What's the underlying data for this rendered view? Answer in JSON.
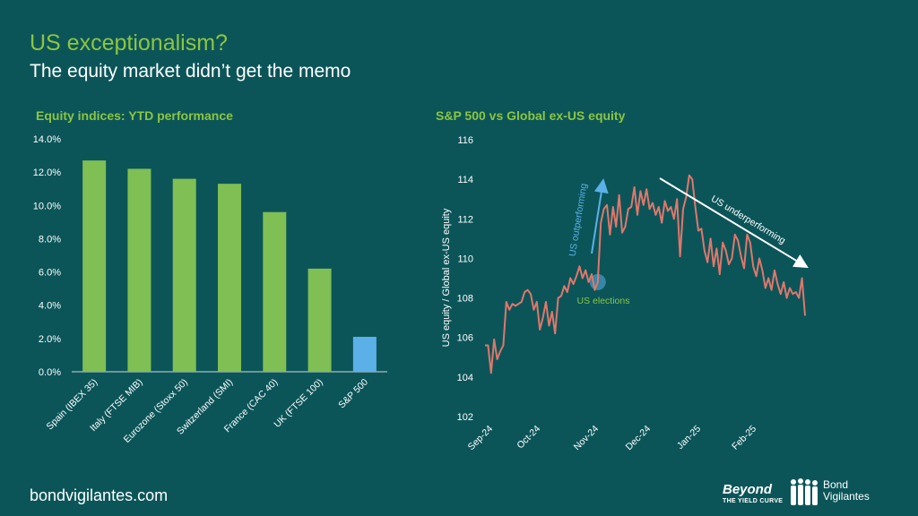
{
  "header": {
    "title": "US exceptionalism?",
    "subtitle": "The equity market didn’t get the memo"
  },
  "footer": {
    "url": "bondvigilantes.com",
    "logo_beyond": "Beyond",
    "logo_beyond_tagline": "THE YIELD CURVE",
    "logo_bv_line1": "Bond",
    "logo_bv_line2": "Vigilantes"
  },
  "colors": {
    "background": "#0b5559",
    "title_green": "#8cc63f",
    "bar_green": "#7fbf53",
    "bar_blue": "#5bb0e8",
    "line_red": "#e0776b",
    "annotation_blue": "#5bb0e8",
    "annotation_green": "#8cc63f"
  },
  "chart_data": [
    {
      "type": "bar",
      "title": "Equity indices: YTD performance",
      "categories": [
        "Spain (IBEX 35)",
        "Italy (FTSE MIB)",
        "Eurozone (Stoxx 50)",
        "Switzerland (SMI)",
        "France (CAC 40)",
        "UK (FTSE 100)",
        "S&P 500"
      ],
      "values": [
        12.7,
        12.2,
        11.6,
        11.3,
        9.6,
        6.2,
        2.1
      ],
      "bar_colors": [
        "#7fbf53",
        "#7fbf53",
        "#7fbf53",
        "#7fbf53",
        "#7fbf53",
        "#7fbf53",
        "#5bb0e8"
      ],
      "ylim": [
        0,
        14
      ],
      "yticks": [
        "0.0%",
        "2.0%",
        "4.0%",
        "6.0%",
        "8.0%",
        "10.0%",
        "12.0%",
        "14.0%"
      ],
      "grid": false
    },
    {
      "type": "line",
      "title": "S&P 500 vs Global ex-US equity",
      "ylabel": "US equity / Global ex-US equity",
      "ylim": [
        102,
        116
      ],
      "yticks": [
        "102",
        "104",
        "106",
        "108",
        "110",
        "112",
        "114",
        "116"
      ],
      "xticks": [
        "Sep-24",
        "Oct-24",
        "Nov-24",
        "Dec-24",
        "Jan-25",
        "Feb-25"
      ],
      "series": [
        {
          "values": [
            105.6,
            105.6,
            104.2,
            105.9,
            104.9,
            105.3,
            105.6,
            107.8,
            107.4,
            107.7,
            107.6,
            107.7,
            107.8,
            108.3,
            108.4,
            108.2,
            107.4,
            107.8,
            106.4,
            107.0,
            107.8,
            106.6,
            107.3,
            106.2,
            108.0,
            108.1,
            108.6,
            108.3,
            109.0,
            108.7,
            109.1,
            109.6,
            109.0,
            109.4,
            108.8,
            109.2,
            108.4,
            108.8,
            111.8,
            112.5,
            112.7,
            111.2,
            112.6,
            111.6,
            113.2,
            111.3,
            111.6,
            112.5,
            112.6,
            113.6,
            112.2,
            113.4,
            112.7,
            113.5,
            112.5,
            112.8,
            112.2,
            112.6,
            111.8,
            112.9,
            112.4,
            112.6,
            112.0,
            113.0,
            110.1,
            112.5,
            113.1,
            114.2,
            114.0,
            112.6,
            111.4,
            111.5,
            110.4,
            109.8,
            111.0,
            109.6,
            110.5,
            109.2,
            110.8,
            110.4,
            109.7,
            110.0,
            111.2,
            110.9,
            110.1,
            109.5,
            111.2,
            110.8,
            109.6,
            109.1,
            110.0,
            109.4,
            108.5,
            109.0,
            108.4,
            109.4,
            108.7,
            108.2,
            108.8,
            108.0,
            108.5,
            108.2,
            108.3,
            108.0,
            109.0,
            107.1
          ]
        }
      ],
      "annotations": [
        {
          "text": "US outperforming",
          "color": "#5bb0e8"
        },
        {
          "text": "US underperforming",
          "color": "#ffffff"
        },
        {
          "text": "US elections",
          "color": "#8cc63f"
        }
      ]
    }
  ]
}
